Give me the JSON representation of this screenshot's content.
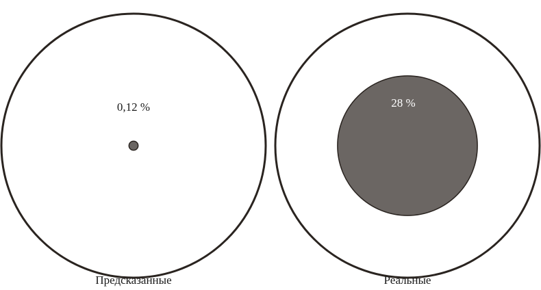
{
  "chart_data": {
    "type": "area-circle",
    "categories": [
      "Предсказанные",
      "Реальные"
    ],
    "values": [
      0.12,
      28
    ],
    "value_labels": [
      "0,12 %",
      "28 %"
    ],
    "ylim": [
      0,
      100
    ],
    "color": "#6b6663"
  }
}
